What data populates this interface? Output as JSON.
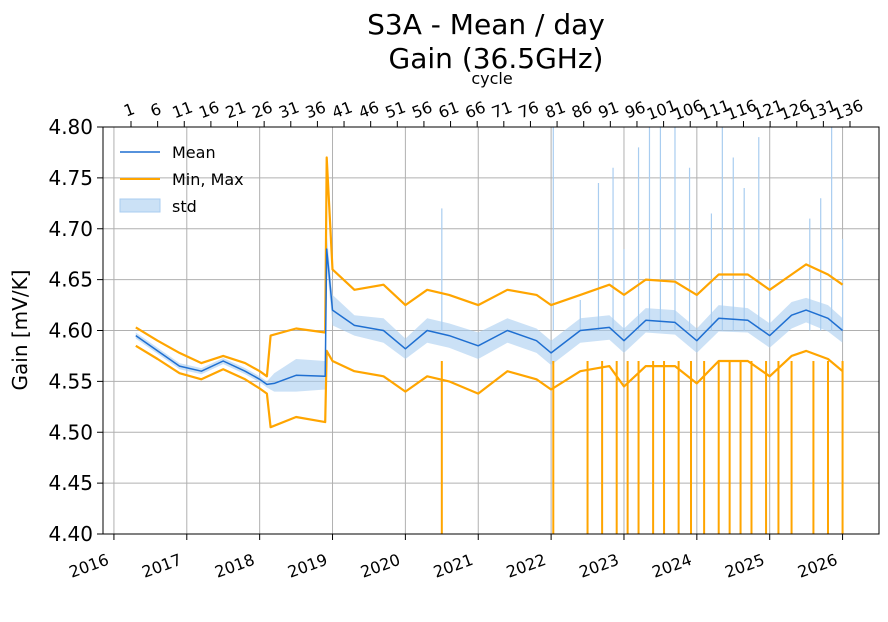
{
  "chart_data": {
    "type": "line",
    "title": "S3A - Mean / day",
    "subtitle": "Gain (36.5GHz)",
    "xlabel": "",
    "ylabel": "Gain [mV/K]",
    "top_axis_label": "cycle",
    "x_ticks": [
      "2016",
      "2017",
      "2018",
      "2019",
      "2020",
      "2021",
      "2022",
      "2023",
      "2024",
      "2025",
      "2026"
    ],
    "cycle_ticks": [
      "1",
      "6",
      "11",
      "16",
      "21",
      "26",
      "31",
      "36",
      "41",
      "46",
      "51",
      "56",
      "61",
      "66",
      "71",
      "76",
      "81",
      "86",
      "91",
      "96",
      "101",
      "106",
      "111",
      "116",
      "121",
      "126",
      "131",
      "136"
    ],
    "y_ticks": [
      "4.40",
      "4.45",
      "4.50",
      "4.55",
      "4.60",
      "4.65",
      "4.70",
      "4.75",
      "4.80"
    ],
    "ylim": [
      4.4,
      4.8
    ],
    "xlim": [
      2015.85,
      2026.5
    ],
    "grid": true,
    "legend_position": "top-left",
    "colors": {
      "mean": "#1f6fd1",
      "minmax": "#ffa500",
      "std": "#a9cdf0"
    },
    "series": [
      {
        "name": "Mean",
        "x": [
          2016.3,
          2016.6,
          2016.9,
          2017.2,
          2017.5,
          2017.8,
          2018.0,
          2018.1,
          2018.2,
          2018.5,
          2018.9,
          2018.92,
          2019.0,
          2019.3,
          2019.7,
          2020.0,
          2020.3,
          2020.6,
          2021.0,
          2021.4,
          2021.8,
          2022.0,
          2022.4,
          2022.8,
          2023.0,
          2023.3,
          2023.7,
          2024.0,
          2024.3,
          2024.7,
          2025.0,
          2025.3,
          2025.5,
          2025.8,
          2026.0
        ],
        "y": [
          4.595,
          4.58,
          4.565,
          4.56,
          4.57,
          4.56,
          4.552,
          4.547,
          4.548,
          4.556,
          4.555,
          4.68,
          4.62,
          4.605,
          4.6,
          4.582,
          4.6,
          4.595,
          4.585,
          4.6,
          4.59,
          4.578,
          4.6,
          4.603,
          4.59,
          4.61,
          4.608,
          4.59,
          4.612,
          4.61,
          4.595,
          4.615,
          4.62,
          4.612,
          4.6
        ]
      },
      {
        "name": "Min, Max",
        "role": "max",
        "x": [
          2016.3,
          2016.6,
          2016.9,
          2017.2,
          2017.5,
          2017.8,
          2018.0,
          2018.1,
          2018.15,
          2018.5,
          2018.9,
          2018.92,
          2019.0,
          2019.3,
          2019.7,
          2020.0,
          2020.3,
          2020.6,
          2021.0,
          2021.4,
          2021.8,
          2022.0,
          2022.4,
          2022.8,
          2023.0,
          2023.3,
          2023.7,
          2024.0,
          2024.3,
          2024.7,
          2025.0,
          2025.3,
          2025.5,
          2025.8,
          2026.0
        ],
        "y": [
          4.603,
          4.59,
          4.578,
          4.568,
          4.575,
          4.568,
          4.56,
          4.555,
          4.595,
          4.602,
          4.598,
          4.77,
          4.66,
          4.64,
          4.645,
          4.625,
          4.64,
          4.635,
          4.625,
          4.64,
          4.635,
          4.625,
          4.635,
          4.645,
          4.635,
          4.65,
          4.648,
          4.635,
          4.655,
          4.655,
          4.64,
          4.655,
          4.665,
          4.655,
          4.645
        ]
      },
      {
        "name": "",
        "role": "min",
        "x": [
          2016.3,
          2016.6,
          2016.9,
          2017.2,
          2017.5,
          2017.8,
          2018.0,
          2018.1,
          2018.15,
          2018.5,
          2018.9,
          2018.92,
          2019.0,
          2019.3,
          2019.7,
          2020.0,
          2020.3,
          2020.6,
          2021.0,
          2021.4,
          2021.8,
          2022.0,
          2022.4,
          2022.8,
          2023.0,
          2023.3,
          2023.7,
          2024.0,
          2024.3,
          2024.7,
          2025.0,
          2025.3,
          2025.5,
          2025.8,
          2026.0
        ],
        "y": [
          4.585,
          4.572,
          4.558,
          4.552,
          4.562,
          4.552,
          4.543,
          4.538,
          4.505,
          4.515,
          4.51,
          4.58,
          4.57,
          4.56,
          4.555,
          4.54,
          4.555,
          4.55,
          4.538,
          4.56,
          4.552,
          4.542,
          4.56,
          4.565,
          4.545,
          4.565,
          4.565,
          4.548,
          4.57,
          4.57,
          4.555,
          4.575,
          4.58,
          4.572,
          4.56
        ]
      },
      {
        "name": "std",
        "role": "band",
        "x": [
          2016.3,
          2016.6,
          2016.9,
          2017.2,
          2017.5,
          2017.8,
          2018.0,
          2018.1,
          2018.2,
          2018.5,
          2018.9,
          2018.92,
          2019.0,
          2019.3,
          2019.7,
          2020.0,
          2020.3,
          2020.6,
          2021.0,
          2021.4,
          2021.8,
          2022.0,
          2022.4,
          2022.8,
          2023.0,
          2023.3,
          2023.7,
          2024.0,
          2024.3,
          2024.7,
          2025.0,
          2025.3,
          2025.5,
          2025.8,
          2026.0
        ],
        "upper": [
          4.598,
          4.583,
          4.568,
          4.563,
          4.573,
          4.563,
          4.555,
          4.55,
          4.558,
          4.572,
          4.57,
          4.695,
          4.635,
          4.615,
          4.612,
          4.592,
          4.612,
          4.607,
          4.598,
          4.612,
          4.602,
          4.59,
          4.612,
          4.615,
          4.602,
          4.622,
          4.62,
          4.602,
          4.625,
          4.622,
          4.607,
          4.628,
          4.632,
          4.625,
          4.612
        ],
        "lower": [
          4.592,
          4.577,
          4.562,
          4.557,
          4.567,
          4.557,
          4.549,
          4.544,
          4.54,
          4.54,
          4.542,
          4.665,
          4.605,
          4.595,
          4.588,
          4.572,
          4.588,
          4.583,
          4.572,
          4.588,
          4.578,
          4.566,
          4.588,
          4.591,
          4.578,
          4.598,
          4.596,
          4.578,
          4.599,
          4.598,
          4.583,
          4.602,
          4.608,
          4.599,
          4.588
        ]
      }
    ],
    "dropouts_x": [
      2020.5,
      2022.03,
      2022.5,
      2022.7,
      2022.9,
      2023.05,
      2023.2,
      2023.4,
      2023.55,
      2023.75,
      2023.92,
      2024.1,
      2024.3,
      2024.45,
      2024.6,
      2024.75,
      2024.95,
      2025.12,
      2025.3,
      2025.6,
      2025.8,
      2026.0
    ],
    "mean_spikes": [
      {
        "x": 2020.5,
        "y": 4.72
      },
      {
        "x": 2022.03,
        "y": 4.8
      },
      {
        "x": 2022.4,
        "y": 4.63
      },
      {
        "x": 2022.65,
        "y": 4.745
      },
      {
        "x": 2022.85,
        "y": 4.76
      },
      {
        "x": 2023.0,
        "y": 4.68
      },
      {
        "x": 2023.2,
        "y": 4.78
      },
      {
        "x": 2023.35,
        "y": 4.8
      },
      {
        "x": 2023.5,
        "y": 4.8
      },
      {
        "x": 2023.7,
        "y": 4.8
      },
      {
        "x": 2023.9,
        "y": 4.76
      },
      {
        "x": 2024.2,
        "y": 4.715
      },
      {
        "x": 2024.35,
        "y": 4.8
      },
      {
        "x": 2024.5,
        "y": 4.77
      },
      {
        "x": 2024.65,
        "y": 4.74
      },
      {
        "x": 2024.85,
        "y": 4.79
      },
      {
        "x": 2025.0,
        "y": 4.66
      },
      {
        "x": 2025.55,
        "y": 4.71
      },
      {
        "x": 2025.7,
        "y": 4.73
      },
      {
        "x": 2025.85,
        "y": 4.8
      },
      {
        "x": 2026.0,
        "y": 4.69
      }
    ]
  }
}
